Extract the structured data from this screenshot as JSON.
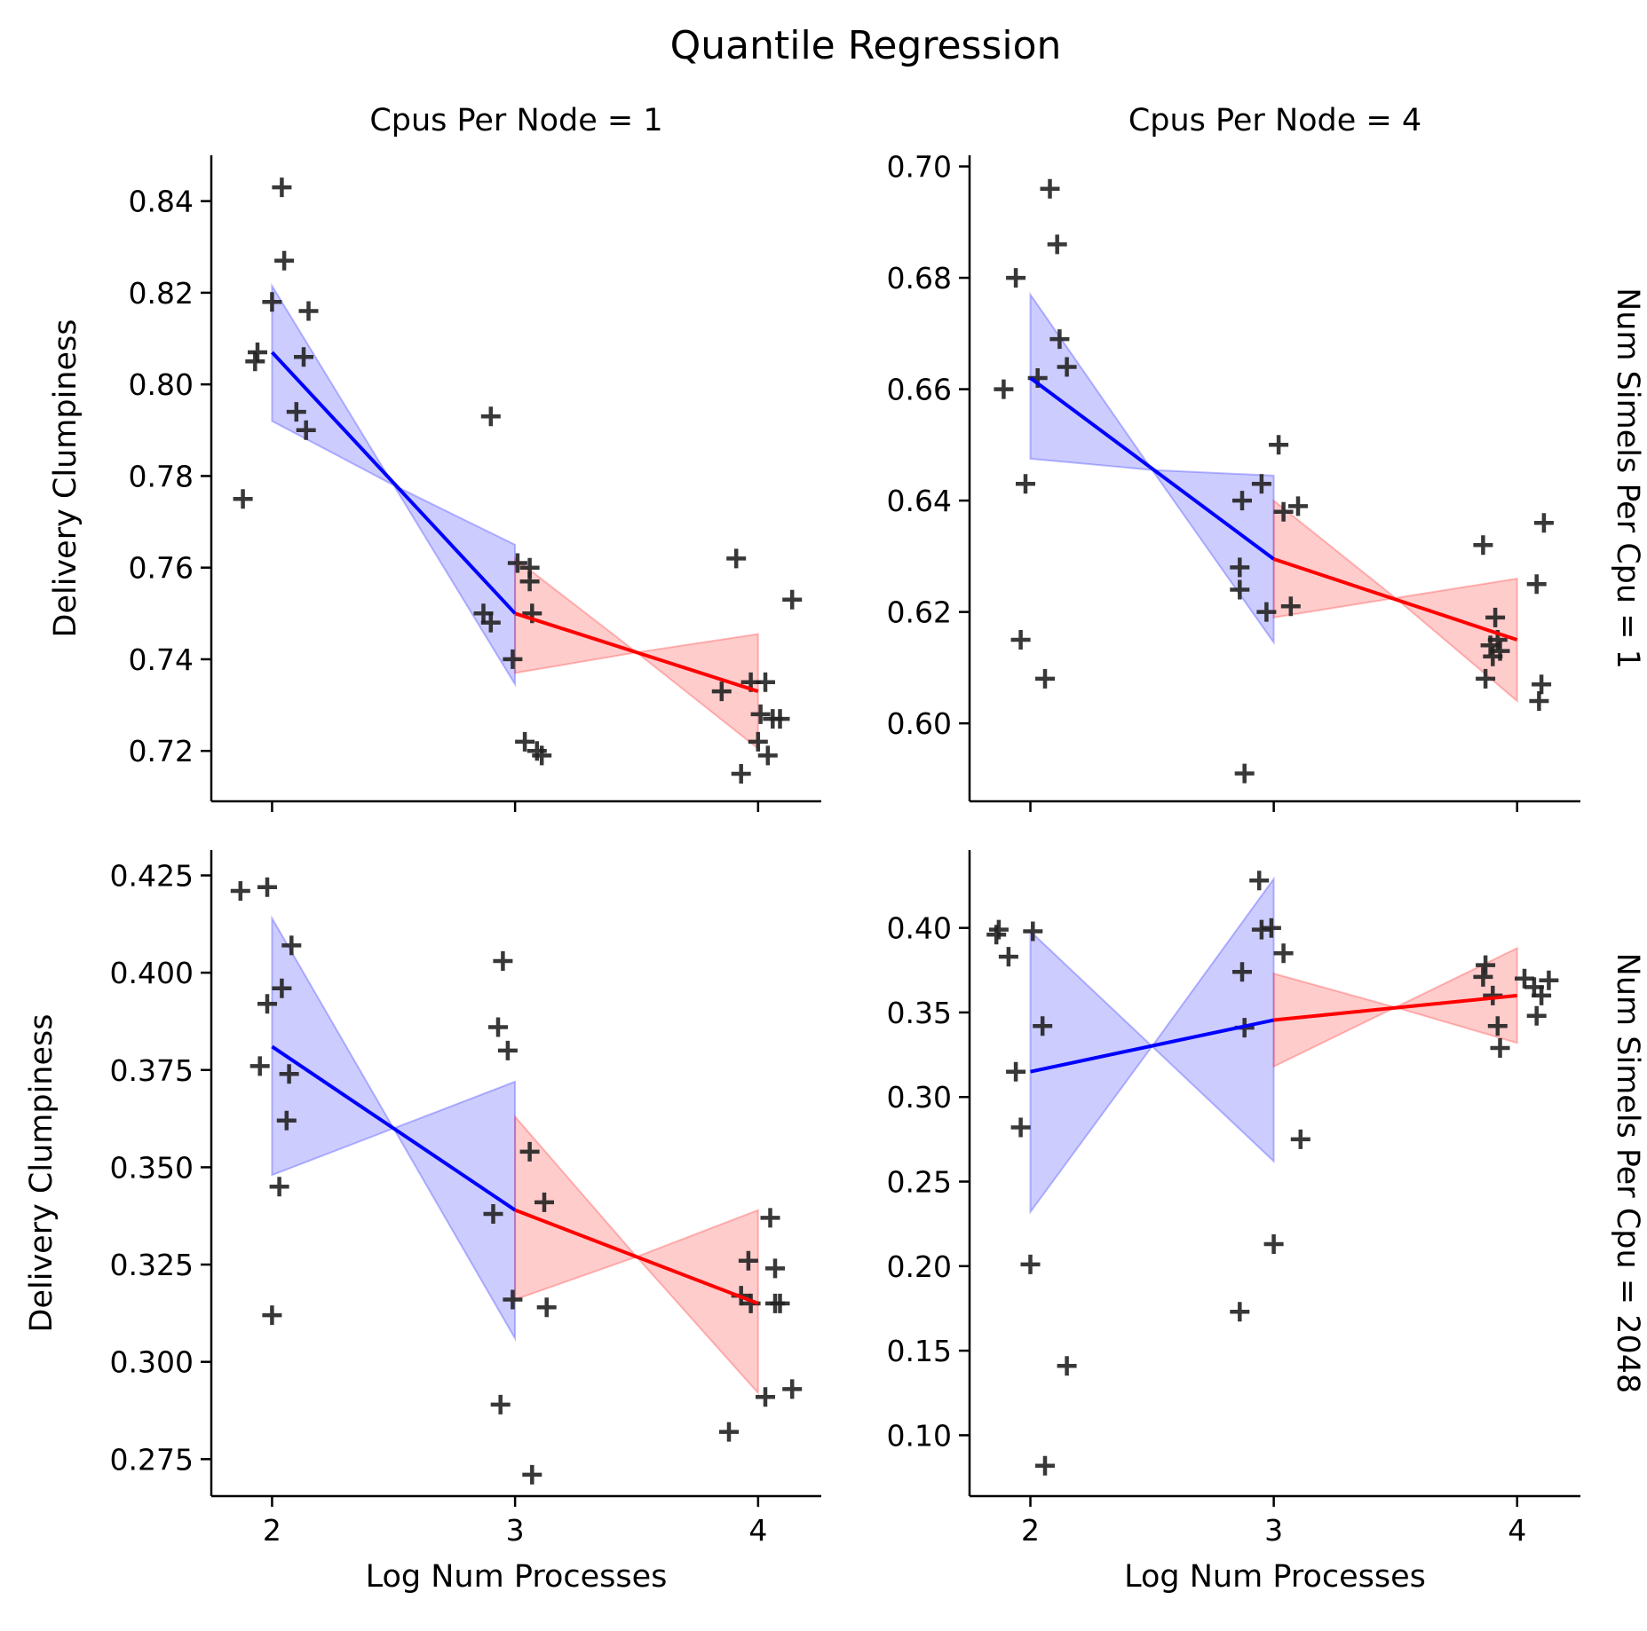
{
  "figure": {
    "title": "Quantile Regression"
  },
  "chart_data": [
    {
      "type": "scatter",
      "panel": "top-left",
      "col_title": "Cpus Per Node = 1",
      "row_title": "",
      "xlabel": "",
      "ylabel": "Delivery Clumpiness",
      "xlim": [
        1.75,
        4.26
      ],
      "ylim": [
        0.709,
        0.85
      ],
      "xticks": [
        2,
        3,
        4
      ],
      "show_xtick_labels": false,
      "yticks": [
        0.72,
        0.74,
        0.76,
        0.78,
        0.8,
        0.82,
        0.84
      ],
      "ytick_labels": [
        "0.72",
        "0.74",
        "0.76",
        "0.78",
        "0.80",
        "0.82",
        "0.84"
      ],
      "points": [
        [
          1.88,
          0.775
        ],
        [
          1.93,
          0.805
        ],
        [
          1.94,
          0.807
        ],
        [
          2.0,
          0.818
        ],
        [
          2.04,
          0.843
        ],
        [
          2.05,
          0.827
        ],
        [
          2.1,
          0.794
        ],
        [
          2.13,
          0.806
        ],
        [
          2.14,
          0.79
        ],
        [
          2.15,
          0.816
        ],
        [
          2.87,
          0.75
        ],
        [
          2.9,
          0.748
        ],
        [
          2.9,
          0.793
        ],
        [
          2.99,
          0.74
        ],
        [
          3.01,
          0.761
        ],
        [
          3.04,
          0.722
        ],
        [
          3.06,
          0.76
        ],
        [
          3.06,
          0.757
        ],
        [
          3.07,
          0.75
        ],
        [
          3.09,
          0.72
        ],
        [
          3.11,
          0.719
        ],
        [
          3.85,
          0.733
        ],
        [
          3.91,
          0.762
        ],
        [
          3.93,
          0.715
        ],
        [
          3.97,
          0.735
        ],
        [
          4.0,
          0.722
        ],
        [
          4.01,
          0.728
        ],
        [
          4.03,
          0.735
        ],
        [
          4.04,
          0.719
        ],
        [
          4.06,
          0.727
        ],
        [
          4.09,
          0.727
        ],
        [
          4.14,
          0.753
        ]
      ],
      "fits": [
        {
          "name": "",
          "color": "#0000ff",
          "x": [
            2,
            3
          ],
          "y": [
            0.807,
            0.75
          ],
          "band_x": [
            2,
            2.5,
            3
          ],
          "band_lower": [
            0.792,
            0.778,
            0.7345
          ],
          "band_upper": [
            0.8215,
            0.778,
            0.765
          ]
        },
        {
          "name": "",
          "color": "#ff0000",
          "x": [
            3,
            4
          ],
          "y": [
            0.75,
            0.733
          ],
          "band_x": [
            3,
            3.5,
            4
          ],
          "band_lower": [
            0.737,
            0.7415,
            0.7205
          ],
          "band_upper": [
            0.762,
            0.7415,
            0.7455
          ]
        }
      ]
    },
    {
      "type": "scatter",
      "panel": "top-right",
      "col_title": "Cpus Per Node = 4",
      "row_title": "Num Simels Per Cpu = 1",
      "xlabel": "",
      "ylabel": "",
      "xlim": [
        1.75,
        4.26
      ],
      "ylim": [
        0.586,
        0.702
      ],
      "xticks": [
        2,
        3,
        4
      ],
      "show_xtick_labels": false,
      "yticks": [
        0.6,
        0.62,
        0.64,
        0.66,
        0.68,
        0.7
      ],
      "ytick_labels": [
        "0.60",
        "0.62",
        "0.64",
        "0.66",
        "0.68",
        "0.70"
      ],
      "points": [
        [
          1.89,
          0.66
        ],
        [
          1.94,
          0.68
        ],
        [
          1.96,
          0.615
        ],
        [
          1.98,
          0.643
        ],
        [
          2.03,
          0.662
        ],
        [
          2.06,
          0.608
        ],
        [
          2.08,
          0.696
        ],
        [
          2.11,
          0.686
        ],
        [
          2.12,
          0.669
        ],
        [
          2.15,
          0.664
        ],
        [
          2.86,
          0.624
        ],
        [
          2.86,
          0.628
        ],
        [
          2.87,
          0.64
        ],
        [
          2.88,
          0.591
        ],
        [
          2.95,
          0.643
        ],
        [
          2.97,
          0.62
        ],
        [
          3.02,
          0.65
        ],
        [
          3.04,
          0.638
        ],
        [
          3.07,
          0.621
        ],
        [
          3.1,
          0.639
        ],
        [
          3.86,
          0.632
        ],
        [
          3.87,
          0.608
        ],
        [
          3.89,
          0.614
        ],
        [
          3.9,
          0.612
        ],
        [
          3.91,
          0.619
        ],
        [
          3.92,
          0.615
        ],
        [
          3.93,
          0.613
        ],
        [
          4.08,
          0.625
        ],
        [
          4.09,
          0.604
        ],
        [
          4.1,
          0.607
        ],
        [
          4.11,
          0.636
        ]
      ],
      "fits": [
        {
          "name": "",
          "color": "#0000ff",
          "x": [
            2,
            3
          ],
          "y": [
            0.662,
            0.6295
          ],
          "band_x": [
            2,
            2.5,
            3
          ],
          "band_lower": [
            0.6475,
            0.6455,
            0.6145
          ],
          "band_upper": [
            0.677,
            0.6455,
            0.6445
          ]
        },
        {
          "name": "",
          "color": "#ff0000",
          "x": [
            3,
            4
          ],
          "y": [
            0.6295,
            0.615
          ],
          "band_x": [
            3,
            3.5,
            4
          ],
          "band_lower": [
            0.619,
            0.6225,
            0.604
          ],
          "band_upper": [
            0.64,
            0.6225,
            0.626
          ]
        }
      ]
    },
    {
      "type": "scatter",
      "panel": "bottom-left",
      "col_title": "",
      "row_title": "",
      "xlabel": "Log Num Processes",
      "ylabel": "Delivery Clumpiness",
      "xlim": [
        1.75,
        4.26
      ],
      "ylim": [
        0.2655,
        0.4315
      ],
      "xticks": [
        2,
        3,
        4
      ],
      "xtick_labels": [
        "2",
        "3",
        "4"
      ],
      "show_xtick_labels": true,
      "yticks": [
        0.275,
        0.3,
        0.325,
        0.35,
        0.375,
        0.4,
        0.425
      ],
      "ytick_labels": [
        "0.275",
        "0.300",
        "0.325",
        "0.350",
        "0.375",
        "0.400",
        "0.425"
      ],
      "points": [
        [
          1.87,
          0.421
        ],
        [
          1.95,
          0.376
        ],
        [
          1.98,
          0.392
        ],
        [
          1.98,
          0.422
        ],
        [
          2.0,
          0.312
        ],
        [
          2.03,
          0.345
        ],
        [
          2.04,
          0.396
        ],
        [
          2.06,
          0.362
        ],
        [
          2.07,
          0.374
        ],
        [
          2.08,
          0.407
        ],
        [
          2.91,
          0.338
        ],
        [
          2.93,
          0.386
        ],
        [
          2.94,
          0.289
        ],
        [
          2.95,
          0.403
        ],
        [
          2.97,
          0.38
        ],
        [
          2.99,
          0.316
        ],
        [
          3.06,
          0.354
        ],
        [
          3.07,
          0.271
        ],
        [
          3.12,
          0.341
        ],
        [
          3.13,
          0.314
        ],
        [
          3.88,
          0.282
        ],
        [
          3.93,
          0.317
        ],
        [
          3.96,
          0.326
        ],
        [
          3.97,
          0.315
        ],
        [
          4.03,
          0.291
        ],
        [
          4.05,
          0.337
        ],
        [
          4.07,
          0.315
        ],
        [
          4.07,
          0.324
        ],
        [
          4.09,
          0.315
        ],
        [
          4.14,
          0.293
        ]
      ],
      "fits": [
        {
          "name": "",
          "color": "#0000ff",
          "x": [
            2,
            3
          ],
          "y": [
            0.381,
            0.339
          ],
          "band_x": [
            2,
            2.5,
            3
          ],
          "band_lower": [
            0.348,
            0.36,
            0.306
          ],
          "band_upper": [
            0.414,
            0.36,
            0.372
          ]
        },
        {
          "name": "",
          "color": "#ff0000",
          "x": [
            3,
            4
          ],
          "y": [
            0.339,
            0.315
          ],
          "band_x": [
            3,
            3.5,
            4
          ],
          "band_lower": [
            0.316,
            0.327,
            0.292
          ],
          "band_upper": [
            0.363,
            0.327,
            0.339
          ]
        }
      ]
    },
    {
      "type": "scatter",
      "panel": "bottom-right",
      "col_title": "",
      "row_title": "Num Simels Per Cpu = 2048",
      "xlabel": "Log Num Processes",
      "ylabel": "",
      "xlim": [
        1.75,
        4.26
      ],
      "ylim": [
        0.064,
        0.446
      ],
      "xticks": [
        2,
        3,
        4
      ],
      "xtick_labels": [
        "2",
        "3",
        "4"
      ],
      "show_xtick_labels": true,
      "yticks": [
        0.1,
        0.15,
        0.2,
        0.25,
        0.3,
        0.35,
        0.4
      ],
      "ytick_labels": [
        "0.10",
        "0.15",
        "0.20",
        "0.25",
        "0.30",
        "0.35",
        "0.40"
      ],
      "points": [
        [
          1.86,
          0.396
        ],
        [
          1.87,
          0.399
        ],
        [
          1.91,
          0.383
        ],
        [
          1.94,
          0.315
        ],
        [
          1.96,
          0.282
        ],
        [
          2.0,
          0.201
        ],
        [
          2.01,
          0.398
        ],
        [
          2.05,
          0.342
        ],
        [
          2.06,
          0.082
        ],
        [
          2.15,
          0.141
        ],
        [
          2.86,
          0.173
        ],
        [
          2.87,
          0.374
        ],
        [
          2.88,
          0.341
        ],
        [
          2.94,
          0.428
        ],
        [
          2.95,
          0.399
        ],
        [
          2.99,
          0.4
        ],
        [
          3.0,
          0.213
        ],
        [
          3.04,
          0.385
        ],
        [
          3.11,
          0.275
        ],
        [
          3.86,
          0.371
        ],
        [
          3.87,
          0.378
        ],
        [
          3.9,
          0.36
        ],
        [
          3.92,
          0.342
        ],
        [
          3.93,
          0.329
        ],
        [
          4.03,
          0.37
        ],
        [
          4.07,
          0.365
        ],
        [
          4.08,
          0.348
        ],
        [
          4.1,
          0.36
        ],
        [
          4.13,
          0.369
        ]
      ],
      "fits": [
        {
          "name": "",
          "color": "#0000ff",
          "x": [
            2,
            3
          ],
          "y": [
            0.315,
            0.3455
          ],
          "band_x": [
            2,
            2.5,
            3
          ],
          "band_lower": [
            0.232,
            0.33,
            0.262
          ],
          "band_upper": [
            0.398,
            0.33,
            0.429
          ]
        },
        {
          "name": "",
          "color": "#ff0000",
          "x": [
            3,
            4
          ],
          "y": [
            0.3455,
            0.36
          ],
          "band_x": [
            3,
            3.5,
            4
          ],
          "band_lower": [
            0.318,
            0.353,
            0.332
          ],
          "band_upper": [
            0.373,
            0.353,
            0.388
          ]
        }
      ]
    }
  ]
}
